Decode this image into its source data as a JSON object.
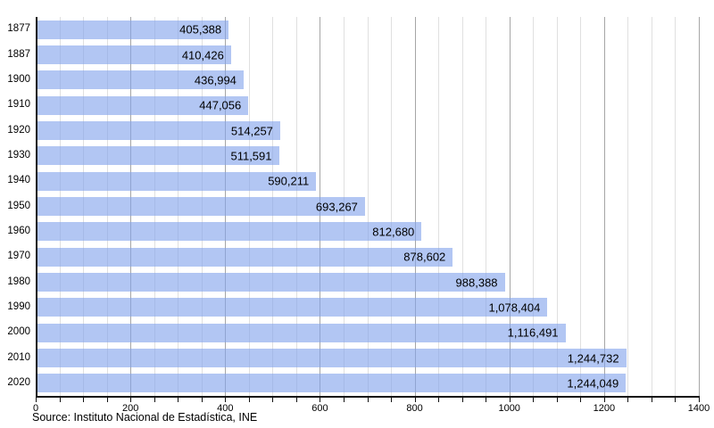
{
  "chart_data": {
    "type": "bar",
    "orientation": "horizontal",
    "title": "",
    "xlabel": "",
    "ylabel": "",
    "categories": [
      "1877",
      "1887",
      "1900",
      "1910",
      "1920",
      "1930",
      "1940",
      "1950",
      "1960",
      "1970",
      "1980",
      "1990",
      "2000",
      "2010",
      "2020"
    ],
    "values": [
      405388,
      410426,
      436994,
      447056,
      514257,
      511591,
      590211,
      693267,
      812680,
      878602,
      988388,
      1078404,
      1116491,
      1244732,
      1244049
    ],
    "value_labels": [
      "405,388",
      "410,426",
      "436,994",
      "447,056",
      "514,257",
      "511,591",
      "590,211",
      "693,267",
      "812,680",
      "878,602",
      "988,388",
      "1,078,404",
      "1,116,491",
      "1,244,732",
      "1,244,049"
    ],
    "xlim": [
      0,
      1400000
    ],
    "x_tick_values": [
      0,
      200000,
      400000,
      600000,
      800000,
      1000000,
      1200000,
      1400000
    ],
    "x_tick_labels": [
      "0",
      "200",
      "400",
      "600",
      "800",
      "1000",
      "1200",
      "1400"
    ],
    "x_minor_step": 50000,
    "grid": "vertical",
    "legend": "none",
    "colors": {
      "bar_fill": "#b2c6f3",
      "bar_fill_rgba": "rgba(131,163,236,0.62)",
      "minor_gridline": "#e0e0e0",
      "major_gridline": "#a6a6a6",
      "axis": "#111111",
      "text": "#000000",
      "background": "#ffffff"
    }
  },
  "source": {
    "text": "Source: Instituto Nacional de Estadística, INE"
  }
}
